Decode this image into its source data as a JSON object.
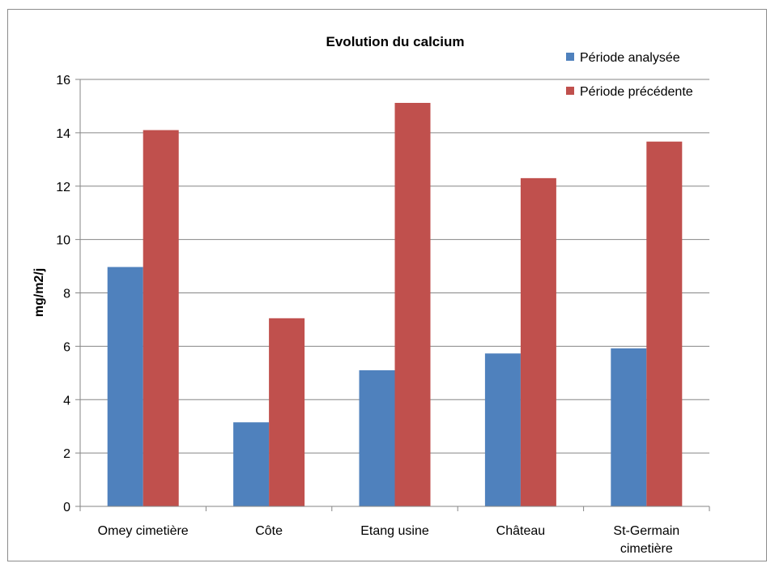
{
  "chart_data": {
    "type": "bar",
    "title": "Evolution du calcium",
    "xlabel": "",
    "ylabel": "mg/m2/j",
    "ylim": [
      0,
      16
    ],
    "yticks": [
      0,
      2,
      4,
      6,
      8,
      10,
      12,
      14,
      16
    ],
    "grid": true,
    "legend_position": "top-right",
    "categories": [
      [
        "Omey cimetière"
      ],
      [
        "Côte"
      ],
      [
        "Etang usine"
      ],
      [
        "Château"
      ],
      [
        "St-Germain",
        "cimetière"
      ]
    ],
    "series": [
      {
        "name": "Période analysée",
        "color": "#4f81bd",
        "values": [
          8.97,
          3.15,
          5.1,
          5.73,
          5.92
        ]
      },
      {
        "name": "Période précédente",
        "color": "#c0504d",
        "values": [
          14.1,
          7.05,
          15.12,
          12.3,
          13.67
        ]
      }
    ]
  }
}
